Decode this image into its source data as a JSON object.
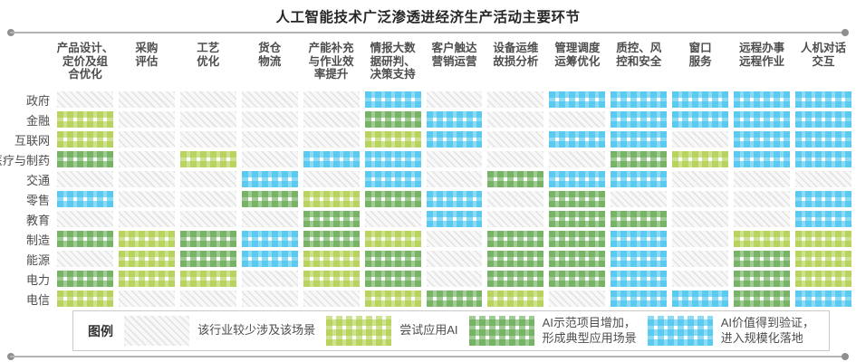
{
  "title": "人工智能技术广泛渗透进经济生产活动主要环节",
  "legend": {
    "title": "图例",
    "items": [
      {
        "level": 0,
        "label": "该行业较少涉及该场景"
      },
      {
        "level": 1,
        "label": "尝试应用AI"
      },
      {
        "level": 2,
        "label": "AI示范项目增加，\n形成典型应用场景"
      },
      {
        "level": 3,
        "label": "AI价值得到验证，\n进入规模化落地"
      }
    ]
  },
  "chart_data": {
    "type": "heatmap",
    "title": "人工智能技术广泛渗透进经济生产活动主要环节",
    "columns": [
      "产品设计、\n定价及组\n合优化",
      "采购\n评估",
      "工艺\n优化",
      "货仓\n物流",
      "产能补充\n与作业效\n率提升",
      "情报大数\n据研判、\n决策支持",
      "客户触达\n营销运营",
      "设备运维\n故损分析",
      "管理调度\n运筹优化",
      "质控、风\n控和安全",
      "窗口\n服务",
      "远程办事\n远程作业",
      "人机对话\n交互"
    ],
    "rows": [
      "政府",
      "金融",
      "互联网",
      "医疗与制药",
      "交通",
      "零售",
      "教育",
      "制造",
      "能源",
      "电力",
      "电信"
    ],
    "levels": [
      {
        "value": 0,
        "label": "该行业较少涉及该场景",
        "pattern": "diagonal-hatch",
        "color": "#e2e2e2"
      },
      {
        "value": 1,
        "label": "尝试应用AI",
        "pattern": "gingham",
        "color": "#a6c935"
      },
      {
        "value": 2,
        "label": "AI示范项目增加，形成典型应用场景",
        "pattern": "gingham",
        "color": "#54a03e"
      },
      {
        "value": 3,
        "label": "AI价值得到验证，进入规模化落地",
        "pattern": "gingham",
        "color": "#2fbcec"
      }
    ],
    "matrix": [
      [
        0,
        0,
        0,
        0,
        0,
        3,
        0,
        0,
        3,
        3,
        3,
        3,
        3
      ],
      [
        1,
        0,
        0,
        0,
        0,
        2,
        3,
        0,
        0,
        3,
        3,
        3,
        3
      ],
      [
        1,
        0,
        0,
        0,
        0,
        1,
        3,
        0,
        3,
        3,
        0,
        3,
        3
      ],
      [
        2,
        0,
        1,
        0,
        3,
        3,
        0,
        0,
        0,
        2,
        1,
        3,
        3
      ],
      [
        0,
        0,
        0,
        3,
        0,
        3,
        0,
        2,
        3,
        3,
        0,
        0,
        0
      ],
      [
        3,
        0,
        0,
        2,
        1,
        2,
        3,
        0,
        2,
        0,
        0,
        0,
        3
      ],
      [
        0,
        0,
        0,
        0,
        2,
        0,
        3,
        0,
        2,
        2,
        0,
        0,
        3
      ],
      [
        2,
        1,
        2,
        3,
        2,
        1,
        0,
        2,
        2,
        3,
        0,
        1,
        1
      ],
      [
        0,
        1,
        2,
        3,
        1,
        2,
        0,
        2,
        2,
        3,
        0,
        2,
        1
      ],
      [
        2,
        1,
        1,
        0,
        1,
        2,
        0,
        2,
        2,
        3,
        0,
        2,
        1
      ],
      [
        1,
        0,
        0,
        0,
        0,
        1,
        2,
        1,
        0,
        3,
        3,
        2,
        3
      ]
    ]
  }
}
